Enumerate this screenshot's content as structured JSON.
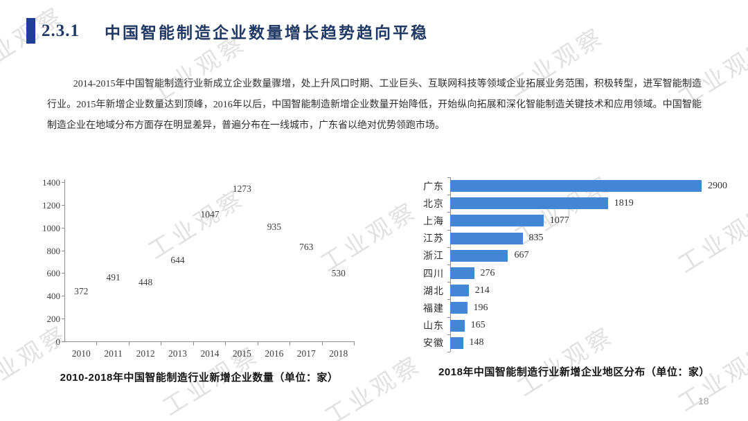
{
  "header": {
    "section_number": "2.3.1",
    "title": "中国智能制造企业数量增长趋势趋向平稳"
  },
  "body": {
    "paragraph": "2014-2015年中国智能制造行业新成立企业数量骤增，处上升风口时期、工业巨头、互联网科技等领域企业拓展业务范围，积极转型，进军智能制造行业。2015年新增企业数量达到顶峰，2016年以后，中国智能制造新增企业数量开始降低，开始纵向拓展和深化智能制造关键技术和应用领域。中国智能制造企业在地域分布方面存在明显差异，普遍分布在一线城市，广东省以绝对优势领跑市场。"
  },
  "footer": {
    "page_number": "18"
  },
  "watermark": {
    "text": "工业观察"
  },
  "colors": {
    "title_text": "#1f3864",
    "accent_bar": "#203e96",
    "left_bar_fill": "#1d4a9f",
    "right_bar_fill": "#4486d6",
    "axis": "#8c8c8c"
  },
  "chart_data": [
    {
      "type": "bar",
      "orientation": "vertical",
      "title": "2010-2018年中国智能制造行业新增企业数量（单位：家）",
      "categories": [
        "2010",
        "2011",
        "2012",
        "2013",
        "2014",
        "2015",
        "2016",
        "2017",
        "2018"
      ],
      "values": [
        372,
        491,
        448,
        644,
        1047,
        1273,
        935,
        763,
        530
      ],
      "xlabel": "",
      "ylabel": "",
      "ylim": [
        0,
        1400
      ],
      "yticks": [
        0,
        200,
        400,
        600,
        800,
        1000,
        1200,
        1400
      ],
      "grid": false,
      "legend": "none",
      "bar_color": "#1d4a9f",
      "data_labels": true
    },
    {
      "type": "bar",
      "orientation": "horizontal",
      "title": "2018年中国智能制造行业新增企业地区分布（单位：家）",
      "categories": [
        "广东",
        "北京",
        "上海",
        "江苏",
        "浙江",
        "四川",
        "湖北",
        "福建",
        "山东",
        "安徽"
      ],
      "values": [
        2900,
        1819,
        1077,
        835,
        667,
        276,
        214,
        196,
        165,
        148
      ],
      "xlabel": "",
      "ylabel": "",
      "value_axis_max": 2900,
      "grid": false,
      "legend": "none",
      "bar_color": "#4486d6",
      "data_labels": true
    }
  ]
}
